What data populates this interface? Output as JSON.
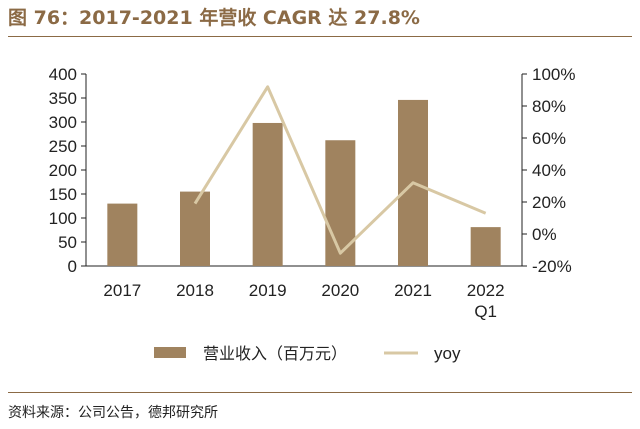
{
  "title": "图 76：2017-2021 年营收 CAGR 达 27.8%",
  "source": "资料来源：公司公告，德邦研究所",
  "colors": {
    "bar": "#A0835F",
    "line": "#D8C8A4",
    "accent": "#8B6A45",
    "axis": "#222222"
  },
  "chart_data": {
    "type": "bar",
    "categories": [
      "2017",
      "2018",
      "2019",
      "2020",
      "2021",
      "2022\nQ1"
    ],
    "series": [
      {
        "name": "营业收入（百万元）",
        "type": "bar",
        "axis": "left",
        "values": [
          130,
          155,
          298,
          262,
          346,
          81
        ]
      },
      {
        "name": "yoy",
        "type": "line",
        "axis": "right",
        "values": [
          null,
          0.19,
          0.92,
          -0.12,
          0.32,
          0.13
        ]
      }
    ],
    "left_axis": {
      "ylim": [
        0,
        400
      ],
      "ticks": [
        0,
        50,
        100,
        150,
        200,
        250,
        300,
        350,
        400
      ]
    },
    "right_axis": {
      "ylim": [
        -0.2,
        1.0
      ],
      "ticks": [
        -0.2,
        0.0,
        0.2,
        0.4,
        0.6,
        0.8,
        1.0
      ],
      "tick_labels": [
        "-20%",
        "0%",
        "20%",
        "40%",
        "60%",
        "80%",
        "100%"
      ]
    },
    "legend_position": "bottom",
    "grid": false
  }
}
